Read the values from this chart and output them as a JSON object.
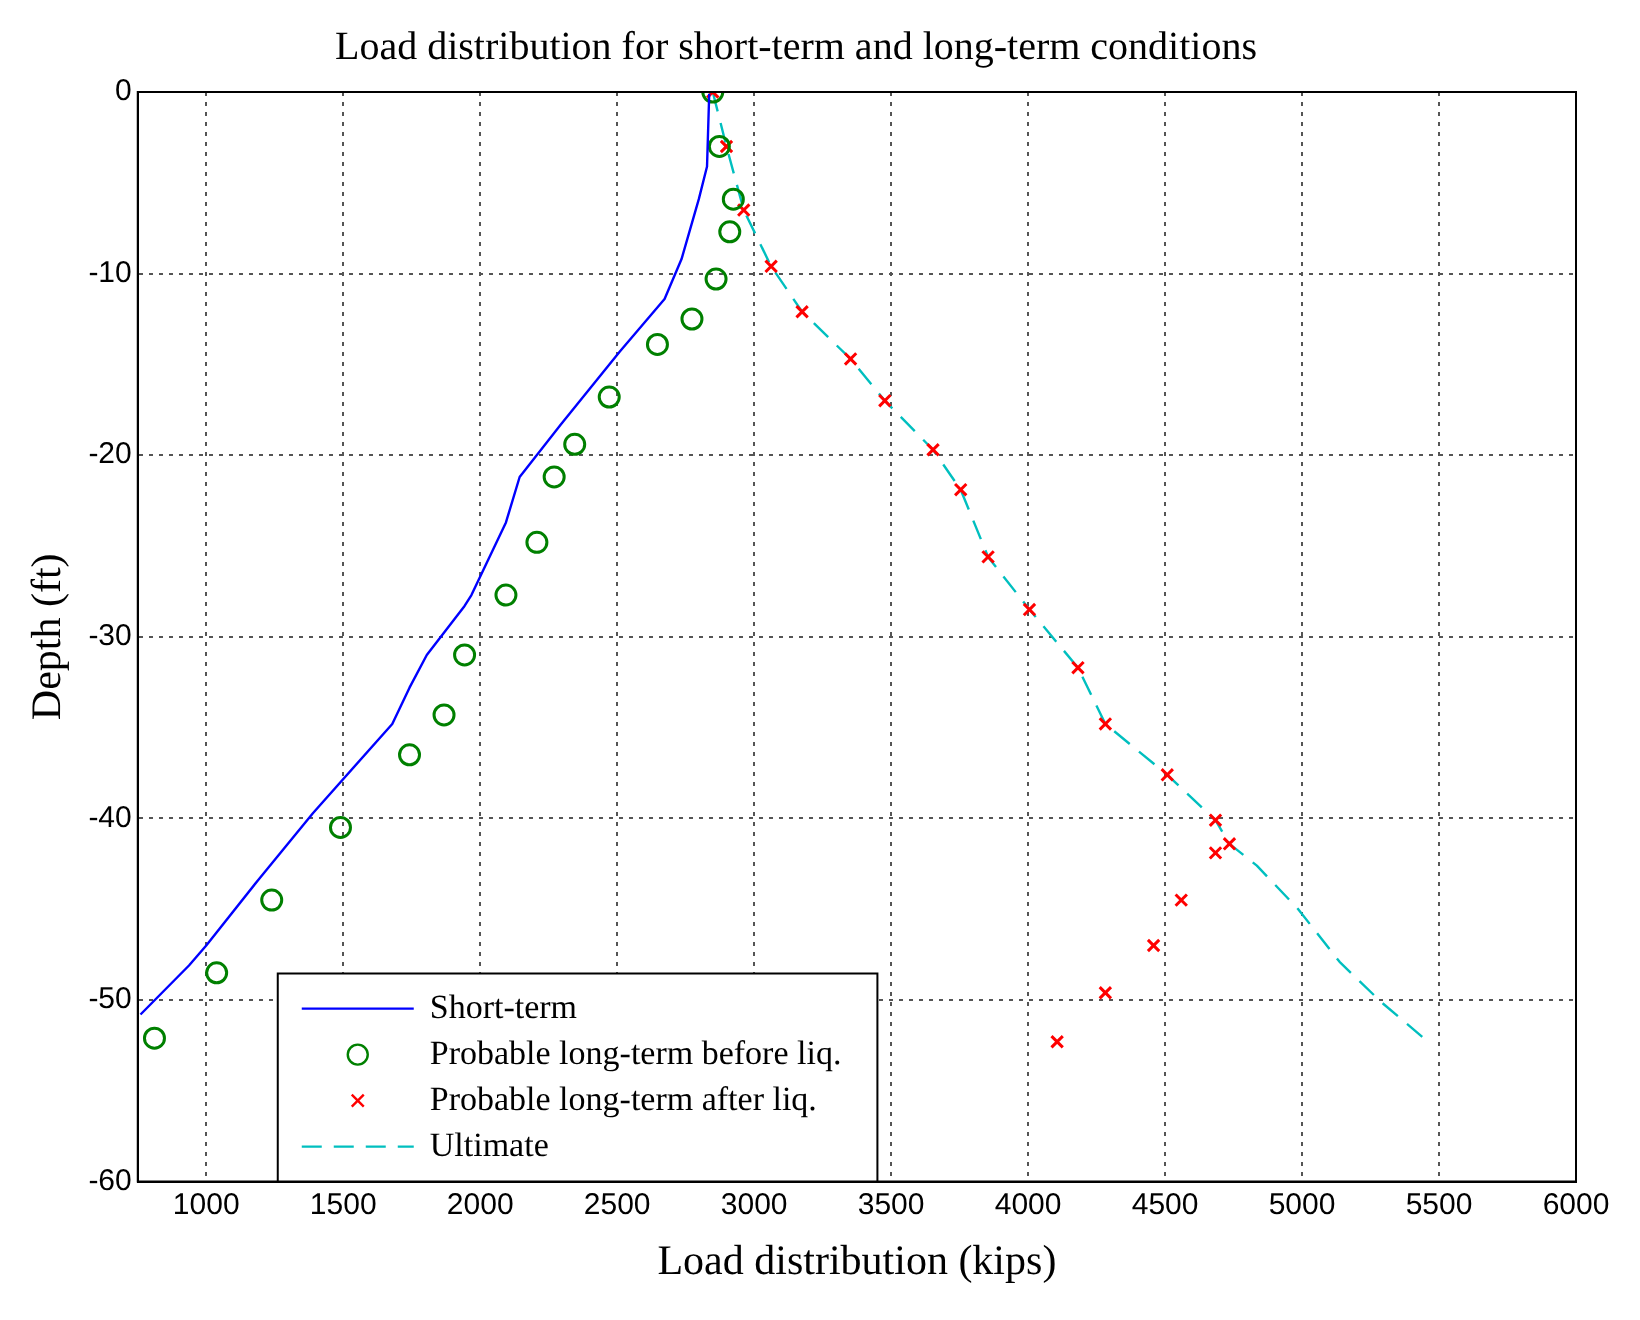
{
  "chart_data": {
    "type": "line",
    "title": "Load distribution for short-term and long-term conditions",
    "xlabel": "Load distribution (kips)",
    "ylabel": "Depth (ft)",
    "xlim": [
      750,
      6000
    ],
    "xticks": [
      1000,
      1500,
      2000,
      2500,
      3000,
      3500,
      4000,
      4500,
      5000,
      5500,
      6000
    ],
    "ylim": [
      -60,
      0
    ],
    "yticks": [
      -60,
      -50,
      -40,
      -30,
      -20,
      -10,
      0
    ],
    "grid": true,
    "legend": "bottom left",
    "series": [
      {
        "name": "Short-term",
        "type": "line",
        "color": "#0000ff",
        "line_style": "solid",
        "marker": "none",
        "x": [
          2836,
          2828,
          2798,
          2735,
          2673,
          2509,
          2295,
          2144,
          2094,
          1968,
          1943,
          1805,
          1742,
          1679,
          1390,
          1189,
          1000,
          937,
          760
        ],
        "values": [
          -0.1,
          -4.1,
          -5.9,
          -9.2,
          -11.4,
          -14.3,
          -18.3,
          -21.2,
          -23.7,
          -27.7,
          -28.3,
          -31.0,
          -32.8,
          -34.8,
          -39.7,
          -43.4,
          -47.0,
          -48.1,
          -50.8
        ]
      },
      {
        "name": "Probable long-term before liq.",
        "type": "scatter",
        "color": "#008000",
        "marker": "circle",
        "x": [
          2849,
          2873,
          2924,
          2911,
          2861,
          2773,
          2647,
          2471,
          2345,
          2270,
          2207,
          2094,
          1943,
          1868,
          1742,
          1490,
          1239,
          1038,
          811
        ],
        "values": [
          0,
          -3,
          -5.9,
          -7.7,
          -10.3,
          -12.5,
          -13.9,
          -16.8,
          -19.4,
          -21.2,
          -24.8,
          -27.7,
          -31.0,
          -34.3,
          -36.5,
          -40.5,
          -44.5,
          -48.5,
          -52.1
        ]
      },
      {
        "name": "Probable long-term after liq.",
        "type": "scatter",
        "color": "#ff0000",
        "marker": "cross",
        "x": [
          2849,
          2899,
          2962,
          3062,
          3175,
          3352,
          3477,
          3653,
          3754,
          3854,
          4005,
          4182,
          4282,
          4508,
          4684,
          4735,
          4684,
          4559,
          4458,
          4282,
          4106
        ],
        "values": [
          0,
          -3,
          -6.5,
          -9.6,
          -12.1,
          -14.7,
          -17,
          -19.7,
          -21.9,
          -25.6,
          -28.5,
          -31.7,
          -34.8,
          -37.6,
          -40.1,
          -41.4,
          -41.9,
          -44.5,
          -47.0,
          -49.6,
          -52.3
        ]
      },
      {
        "name": "Ultimate",
        "type": "line",
        "color": "#00bfbf",
        "line_style": "dashed",
        "marker": "none",
        "x": [
          2849,
          2899,
          2962,
          3062,
          3175,
          3352,
          3477,
          3653,
          3754,
          3854,
          4005,
          4182,
          4282,
          4508,
          4684,
          4735,
          4835,
          4986,
          5137,
          5288,
          5452
        ],
        "values": [
          0,
          -3,
          -6.5,
          -9.6,
          -12.1,
          -14.7,
          -17,
          -19.7,
          -21.9,
          -25.6,
          -28.5,
          -31.7,
          -34.8,
          -37.6,
          -40.1,
          -41.4,
          -42.6,
          -45.0,
          -47.9,
          -50.1,
          -52.2
        ]
      }
    ]
  }
}
